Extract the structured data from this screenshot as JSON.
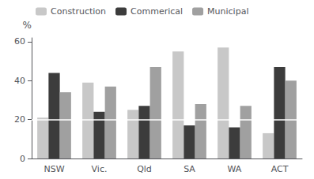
{
  "chart_data": {
    "type": "bar",
    "ylabel": "%",
    "categories": [
      "NSW",
      "Vic.",
      "Qld",
      "SA",
      "WA",
      "ACT"
    ],
    "series": [
      {
        "name": "Construction",
        "color": "#c8c8c8",
        "values": [
          21,
          39,
          25,
          55,
          57,
          13
        ]
      },
      {
        "name": "Commerical",
        "color": "#3c3c3c",
        "values": [
          44,
          24,
          27,
          17,
          16,
          47
        ]
      },
      {
        "name": "Municipal",
        "color": "#a0a0a0",
        "values": [
          34,
          37,
          47,
          28,
          27,
          40
        ]
      }
    ],
    "ylim": [
      0,
      62
    ],
    "yticks": [
      0,
      20,
      40,
      60
    ],
    "hline": 20,
    "grid": false,
    "legend": "upper left"
  }
}
